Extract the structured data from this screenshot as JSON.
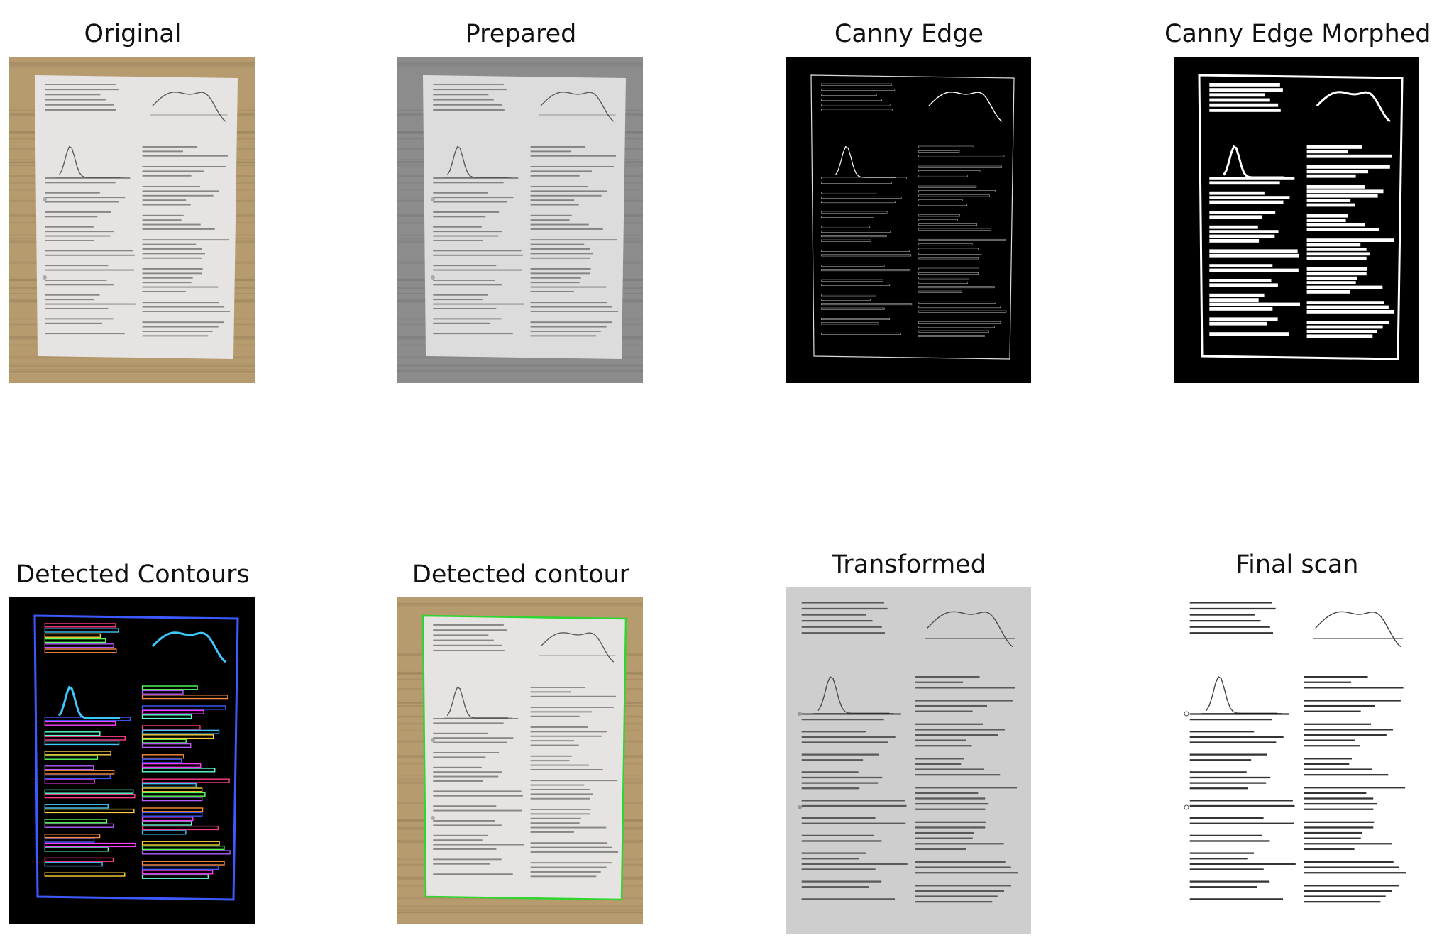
{
  "panels": [
    {
      "id": "original",
      "title": "Original",
      "style": "photo-color"
    },
    {
      "id": "prepared",
      "title": "Prepared",
      "style": "photo-gray"
    },
    {
      "id": "canny",
      "title": "Canny Edge",
      "style": "edges"
    },
    {
      "id": "morphed",
      "title": "Canny Edge Morphed",
      "style": "edges-morphed"
    },
    {
      "id": "contours",
      "title": "Detected Contours",
      "style": "contours"
    },
    {
      "id": "contour",
      "title": "Detected contour",
      "style": "photo-outline"
    },
    {
      "id": "transformed",
      "title": "Transformed",
      "style": "page-gray"
    },
    {
      "id": "final",
      "title": "Final scan",
      "style": "page-scan"
    }
  ],
  "colors": {
    "wood": "#b69b6e",
    "wood_dark": "#8a744f",
    "paper": "#e6e4e2",
    "ink": "#3a3a3a",
    "outline_green": "#2fd62f",
    "contour_palette": [
      "#ff3c8c",
      "#3cc8ff",
      "#ffd23c",
      "#5aff5a",
      "#b45aff",
      "#ff8c3c",
      "#3c5aff",
      "#ff3cff",
      "#5affd2"
    ]
  }
}
